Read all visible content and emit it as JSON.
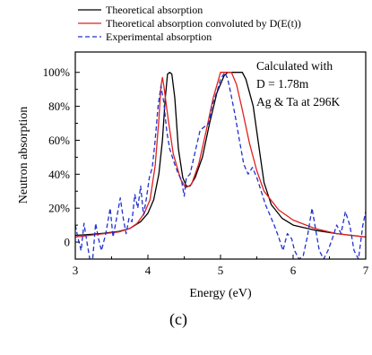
{
  "chart_data": {
    "type": "line",
    "xlabel": "Energy (eV)",
    "ylabel": "Neutron absorption",
    "caption": "(c)",
    "xlim": [
      3,
      7
    ],
    "ylim": [
      -10,
      112
    ],
    "x_ticks": [
      3,
      4,
      5,
      6,
      7
    ],
    "y_ticks": [
      {
        "value": 0,
        "label": "0"
      },
      {
        "value": 20,
        "label": "20%"
      },
      {
        "value": 40,
        "label": "40%"
      },
      {
        "value": 60,
        "label": "60%"
      },
      {
        "value": 80,
        "label": "80%"
      },
      {
        "value": 100,
        "label": "100%"
      }
    ],
    "grid": false,
    "legend_position": "top, outside plot",
    "annotation": [
      "Calculated with",
      "D = 1.78m",
      "Ag & Ta at 296K"
    ],
    "series": [
      {
        "name": "Theoretical absorption",
        "color": "#000000",
        "style": "solid",
        "points": [
          [
            3.0,
            4
          ],
          [
            3.2,
            4.5
          ],
          [
            3.4,
            5.2
          ],
          [
            3.6,
            6.3
          ],
          [
            3.75,
            8
          ],
          [
            3.9,
            12
          ],
          [
            4.0,
            17
          ],
          [
            4.08,
            25
          ],
          [
            4.15,
            40
          ],
          [
            4.2,
            60
          ],
          [
            4.24,
            85
          ],
          [
            4.27,
            99
          ],
          [
            4.3,
            100
          ],
          [
            4.33,
            99
          ],
          [
            4.37,
            85
          ],
          [
            4.42,
            55
          ],
          [
            4.48,
            38
          ],
          [
            4.53,
            33
          ],
          [
            4.58,
            33
          ],
          [
            4.65,
            38
          ],
          [
            4.75,
            50
          ],
          [
            4.85,
            70
          ],
          [
            4.95,
            88
          ],
          [
            5.05,
            98
          ],
          [
            5.1,
            100
          ],
          [
            5.3,
            100
          ],
          [
            5.35,
            96
          ],
          [
            5.45,
            80
          ],
          [
            5.55,
            50
          ],
          [
            5.6,
            35
          ],
          [
            5.7,
            22
          ],
          [
            5.85,
            14
          ],
          [
            6.0,
            10
          ],
          [
            6.3,
            7
          ],
          [
            6.6,
            5
          ],
          [
            7.0,
            3
          ]
        ]
      },
      {
        "name": "Theoretical absorption convoluted by D(E(t))",
        "color": "#e02020",
        "style": "solid",
        "points": [
          [
            3.0,
            3
          ],
          [
            3.2,
            4
          ],
          [
            3.4,
            5
          ],
          [
            3.6,
            6
          ],
          [
            3.75,
            8
          ],
          [
            3.85,
            11
          ],
          [
            3.95,
            17
          ],
          [
            4.03,
            25
          ],
          [
            4.1,
            45
          ],
          [
            4.15,
            72
          ],
          [
            4.18,
            92
          ],
          [
            4.2,
            97
          ],
          [
            4.22,
            92
          ],
          [
            4.28,
            72
          ],
          [
            4.35,
            52
          ],
          [
            4.45,
            37
          ],
          [
            4.52,
            32
          ],
          [
            4.6,
            34
          ],
          [
            4.7,
            46
          ],
          [
            4.8,
            65
          ],
          [
            4.9,
            85
          ],
          [
            4.98,
            97
          ],
          [
            5.0,
            100
          ],
          [
            5.15,
            100
          ],
          [
            5.22,
            93
          ],
          [
            5.3,
            78
          ],
          [
            5.4,
            58
          ],
          [
            5.5,
            42
          ],
          [
            5.6,
            30
          ],
          [
            5.8,
            19
          ],
          [
            6.0,
            13
          ],
          [
            6.3,
            8
          ],
          [
            6.6,
            5
          ],
          [
            7.0,
            3
          ]
        ]
      },
      {
        "name": "Experimental absorption",
        "color": "#2030d0",
        "style": "dashed",
        "points": [
          [
            3.0,
            10
          ],
          [
            3.04,
            2
          ],
          [
            3.08,
            -5
          ],
          [
            3.12,
            11
          ],
          [
            3.16,
            0
          ],
          [
            3.2,
            -10
          ],
          [
            3.24,
            -10
          ],
          [
            3.28,
            11
          ],
          [
            3.32,
            2
          ],
          [
            3.36,
            -5
          ],
          [
            3.42,
            5
          ],
          [
            3.48,
            20
          ],
          [
            3.52,
            3
          ],
          [
            3.56,
            12
          ],
          [
            3.62,
            26
          ],
          [
            3.66,
            14
          ],
          [
            3.7,
            5
          ],
          [
            3.74,
            14
          ],
          [
            3.78,
            12
          ],
          [
            3.82,
            28
          ],
          [
            3.86,
            20
          ],
          [
            3.9,
            33
          ],
          [
            3.94,
            16
          ],
          [
            3.98,
            26
          ],
          [
            4.02,
            38
          ],
          [
            4.06,
            44
          ],
          [
            4.1,
            60
          ],
          [
            4.14,
            80
          ],
          [
            4.18,
            92
          ],
          [
            4.22,
            82
          ],
          [
            4.26,
            65
          ],
          [
            4.3,
            55
          ],
          [
            4.36,
            47
          ],
          [
            4.42,
            40
          ],
          [
            4.46,
            37
          ],
          [
            4.5,
            27
          ],
          [
            4.53,
            38
          ],
          [
            4.58,
            40
          ],
          [
            4.66,
            55
          ],
          [
            4.72,
            66
          ],
          [
            4.78,
            68
          ],
          [
            4.84,
            70
          ],
          [
            4.88,
            80
          ],
          [
            4.92,
            85
          ],
          [
            4.96,
            90
          ],
          [
            5.0,
            96
          ],
          [
            5.06,
            100
          ],
          [
            5.1,
            96
          ],
          [
            5.14,
            88
          ],
          [
            5.2,
            75
          ],
          [
            5.26,
            60
          ],
          [
            5.32,
            46
          ],
          [
            5.38,
            40
          ],
          [
            5.44,
            44
          ],
          [
            5.5,
            38
          ],
          [
            5.56,
            30
          ],
          [
            5.62,
            22
          ],
          [
            5.68,
            16
          ],
          [
            5.74,
            10
          ],
          [
            5.8,
            3
          ],
          [
            5.86,
            -5
          ],
          [
            5.92,
            5
          ],
          [
            5.98,
            2
          ],
          [
            6.02,
            -5
          ],
          [
            6.08,
            -10
          ],
          [
            6.14,
            -8
          ],
          [
            6.2,
            4
          ],
          [
            6.26,
            20
          ],
          [
            6.3,
            10
          ],
          [
            6.36,
            -5
          ],
          [
            6.42,
            -10
          ],
          [
            6.48,
            -5
          ],
          [
            6.54,
            2
          ],
          [
            6.6,
            10
          ],
          [
            6.66,
            5
          ],
          [
            6.72,
            18
          ],
          [
            6.78,
            10
          ],
          [
            6.84,
            -5
          ],
          [
            6.9,
            -10
          ],
          [
            6.96,
            10
          ],
          [
            7.0,
            18
          ]
        ]
      }
    ]
  }
}
